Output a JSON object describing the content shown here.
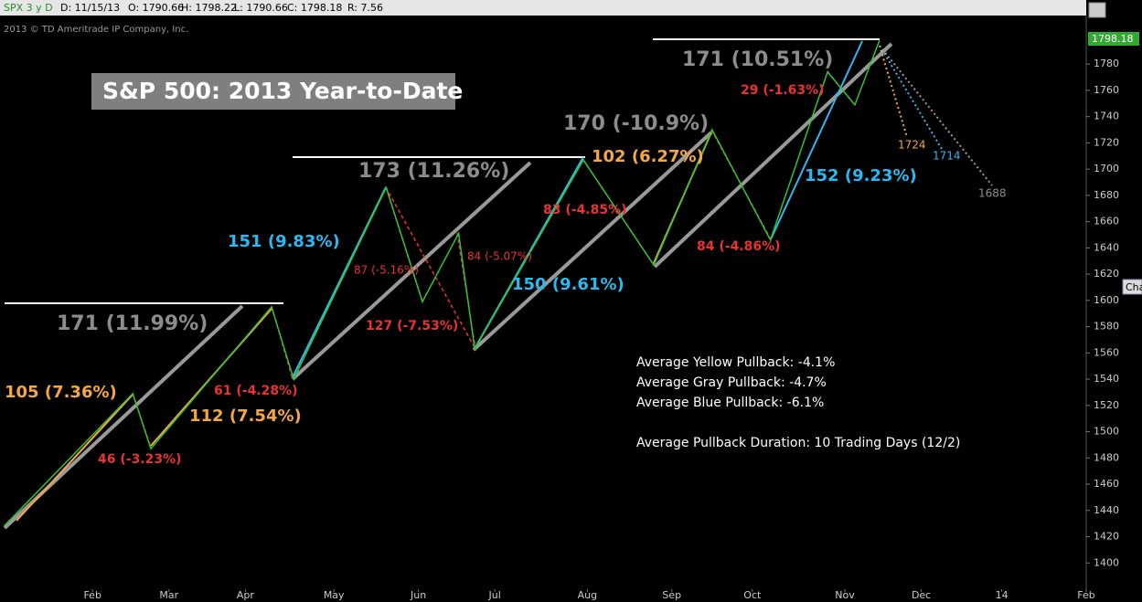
{
  "header": {
    "symbol": "SPX 3 y D",
    "date": "D: 11/15/13",
    "open": "O: 1790.66",
    "high": "H: 1798.22",
    "low": "L: 1790.66",
    "close": "C: 1798.18",
    "range": "R: 7.56",
    "tab": "Cha"
  },
  "chart_data": {
    "type": "line",
    "title": "S&P 500: 2013 Year-to-Date",
    "copyright": "2013 © TD Ameritrade IP Company, Inc.",
    "series": [
      {
        "color": "#33c233",
        "x": [
          1,
          33,
          37.5,
          67.5,
          73,
          96,
          105,
          114,
          118,
          145,
          162.5,
          177,
          191.5,
          205.7,
          212.5,
          218.6
        ],
        "values": [
          1428,
          1529,
          1487,
          1595,
          1540,
          1686,
          1599,
          1651,
          1563,
          1707,
          1627,
          1730,
          1646,
          1774,
          1749,
          1798
        ]
      }
    ],
    "last_label": "1798.18",
    "xlim": [
      0,
      270
    ],
    "ylim": [
      1380,
      1817
    ],
    "xticks": [
      {
        "value": 23,
        "label": "Feb"
      },
      {
        "value": 42,
        "label": "Mar"
      },
      {
        "value": 61,
        "label": "Apr"
      },
      {
        "value": 83,
        "label": "May"
      },
      {
        "value": 104,
        "label": "Jun"
      },
      {
        "value": 123,
        "label": "Jul"
      },
      {
        "value": 146,
        "label": "Aug"
      },
      {
        "value": 167,
        "label": "Sep"
      },
      {
        "value": 187,
        "label": "Oct"
      },
      {
        "value": 210,
        "label": "Nov"
      },
      {
        "value": 229,
        "label": "Dec"
      },
      {
        "value": 249,
        "label": "14"
      },
      {
        "value": 270,
        "label": "Feb"
      }
    ],
    "yticks": [
      1400,
      1420,
      1440,
      1460,
      1480,
      1500,
      1520,
      1540,
      1560,
      1580,
      1600,
      1620,
      1640,
      1660,
      1680,
      1700,
      1720,
      1740,
      1760,
      1780
    ],
    "annotations": [
      {
        "text": "171 (11.99%)",
        "color": "#8c8c8c"
      },
      {
        "text": "105 (7.36%)",
        "color": "#f5a742"
      },
      {
        "text": "46 (-3.23%)",
        "color": "#e8332e"
      },
      {
        "text": "112 (7.54%)",
        "color": "#f5a742"
      },
      {
        "text": "61 (-4.28%)",
        "color": "#e8332e"
      },
      {
        "text": "151 (9.83%)",
        "color": "#2fb8f0"
      },
      {
        "text": "173 (11.26%)",
        "color": "#8c8c8c"
      },
      {
        "text": "87 (-5.16%)",
        "color": "#e8332e"
      },
      {
        "text": "84 (-5.07%)",
        "color": "#e8332e"
      },
      {
        "text": "127 (-7.53%)",
        "color": "#e8332e"
      },
      {
        "text": "150 (9.61%)",
        "color": "#2fb8f0"
      },
      {
        "text": "83 (-4.85%)",
        "color": "#e8332e"
      },
      {
        "text": "102 (6.27%)",
        "color": "#f5a742"
      },
      {
        "text": "170 (-10.9%)",
        "color": "#8c8c8c"
      },
      {
        "text": "171 (10.51%)",
        "color": "#8c8c8c"
      },
      {
        "text": "29 (-1.63%)",
        "color": "#e8332e"
      },
      {
        "text": "84 (-4.86%)",
        "color": "#e8332e"
      },
      {
        "text": "152 (9.23%)",
        "color": "#2fb8f0"
      },
      {
        "text": "1724",
        "color": "#f5a742"
      },
      {
        "text": "1714",
        "color": "#2fb8f0"
      },
      {
        "text": "1688",
        "color": "#8c8c8c"
      }
    ],
    "stats": [
      "Average Yellow Pullback: -4.1%",
      "Average Gray Pullback: -4.7%",
      "Average Blue Pullback: -6.1%",
      "Average Pullback Duration: 10 Trading Days (12/2)"
    ]
  }
}
